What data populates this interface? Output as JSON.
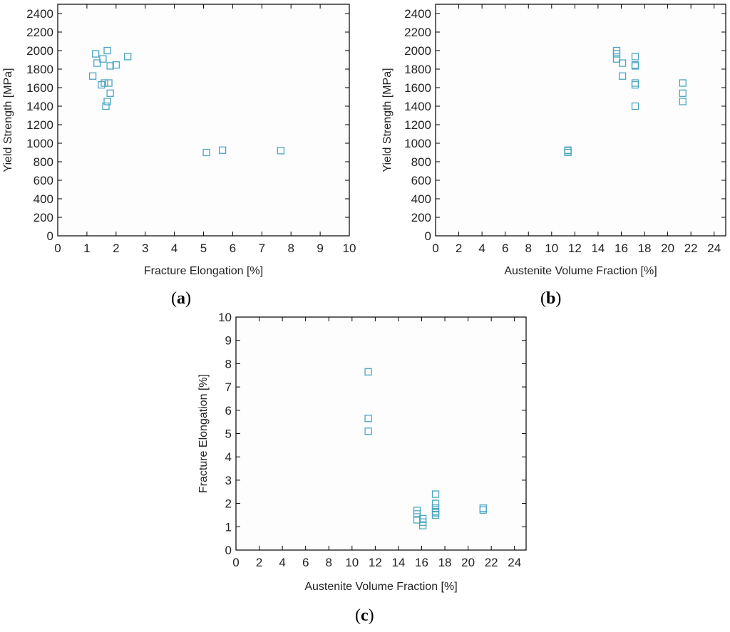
{
  "chart_data": [
    {
      "type": "scatter",
      "panel": "a",
      "xlabel": "Fracture Elongation [%]",
      "ylabel": "Yield Strength [MPa]",
      "xlim": [
        0,
        10
      ],
      "ylim": [
        0,
        2500
      ],
      "xticks": [
        0,
        1,
        2,
        3,
        4,
        5,
        6,
        7,
        8,
        9,
        10
      ],
      "yticks": [
        0,
        200,
        400,
        600,
        800,
        1000,
        1200,
        1400,
        1600,
        1800,
        2000,
        2200,
        2400
      ],
      "grid": false,
      "marker": "open-square",
      "marker_color": "#4aa6c2",
      "points": [
        {
          "x": 1.2,
          "y": 1725
        },
        {
          "x": 1.3,
          "y": 1965
        },
        {
          "x": 1.35,
          "y": 1865
        },
        {
          "x": 1.5,
          "y": 1630
        },
        {
          "x": 1.55,
          "y": 1910
        },
        {
          "x": 1.6,
          "y": 1650
        },
        {
          "x": 1.65,
          "y": 1400
        },
        {
          "x": 1.7,
          "y": 1450
        },
        {
          "x": 1.7,
          "y": 2000
        },
        {
          "x": 1.75,
          "y": 1650
        },
        {
          "x": 1.8,
          "y": 1835
        },
        {
          "x": 1.8,
          "y": 1540
        },
        {
          "x": 2.0,
          "y": 1845
        },
        {
          "x": 2.4,
          "y": 1935
        },
        {
          "x": 5.1,
          "y": 900
        },
        {
          "x": 5.65,
          "y": 925
        },
        {
          "x": 7.65,
          "y": 920
        }
      ]
    },
    {
      "type": "scatter",
      "panel": "b",
      "xlabel": "Austenite Volume Fraction [%]",
      "ylabel": "Yield Strength [MPa]",
      "xlim": [
        0,
        25
      ],
      "ylim": [
        0,
        2500
      ],
      "xticks": [
        0,
        2,
        4,
        6,
        8,
        10,
        12,
        14,
        16,
        18,
        20,
        22,
        24
      ],
      "yticks": [
        0,
        200,
        400,
        600,
        800,
        1000,
        1200,
        1400,
        1600,
        1800,
        2000,
        2200,
        2400
      ],
      "grid": false,
      "marker": "open-square",
      "marker_color": "#4aa6c2",
      "points": [
        {
          "x": 11.4,
          "y": 900
        },
        {
          "x": 11.4,
          "y": 925
        },
        {
          "x": 11.4,
          "y": 920
        },
        {
          "x": 15.6,
          "y": 2000
        },
        {
          "x": 15.6,
          "y": 1965
        },
        {
          "x": 15.6,
          "y": 1910
        },
        {
          "x": 16.1,
          "y": 1865
        },
        {
          "x": 16.1,
          "y": 1725
        },
        {
          "x": 17.2,
          "y": 1935
        },
        {
          "x": 17.2,
          "y": 1845
        },
        {
          "x": 17.2,
          "y": 1835
        },
        {
          "x": 17.2,
          "y": 1650
        },
        {
          "x": 17.2,
          "y": 1630
        },
        {
          "x": 17.2,
          "y": 1400
        },
        {
          "x": 21.3,
          "y": 1650
        },
        {
          "x": 21.3,
          "y": 1540
        },
        {
          "x": 21.3,
          "y": 1450
        }
      ]
    },
    {
      "type": "scatter",
      "panel": "c",
      "xlabel": "Austenite Volume Fraction [%]",
      "ylabel": "Fracture Elongation [%]",
      "xlim": [
        0,
        25
      ],
      "ylim": [
        0,
        10
      ],
      "xticks": [
        0,
        2,
        4,
        6,
        8,
        10,
        12,
        14,
        16,
        18,
        20,
        22,
        24
      ],
      "yticks": [
        0,
        1,
        2,
        3,
        4,
        5,
        6,
        7,
        8,
        9,
        10
      ],
      "grid": false,
      "marker": "open-square",
      "marker_color": "#4aa6c2",
      "points": [
        {
          "x": 11.4,
          "y": 7.65
        },
        {
          "x": 11.4,
          "y": 5.65
        },
        {
          "x": 11.4,
          "y": 5.1
        },
        {
          "x": 15.6,
          "y": 1.7
        },
        {
          "x": 15.6,
          "y": 1.55
        },
        {
          "x": 15.6,
          "y": 1.3
        },
        {
          "x": 16.1,
          "y": 1.35
        },
        {
          "x": 16.1,
          "y": 1.2
        },
        {
          "x": 16.1,
          "y": 1.05
        },
        {
          "x": 17.2,
          "y": 2.4
        },
        {
          "x": 17.2,
          "y": 2.0
        },
        {
          "x": 17.2,
          "y": 1.8
        },
        {
          "x": 17.2,
          "y": 1.65
        },
        {
          "x": 17.2,
          "y": 1.6
        },
        {
          "x": 17.2,
          "y": 1.5
        },
        {
          "x": 21.3,
          "y": 1.8
        },
        {
          "x": 21.3,
          "y": 1.72
        }
      ]
    }
  ],
  "panel_labels": {
    "a": "a",
    "b": "b",
    "c": "c"
  }
}
